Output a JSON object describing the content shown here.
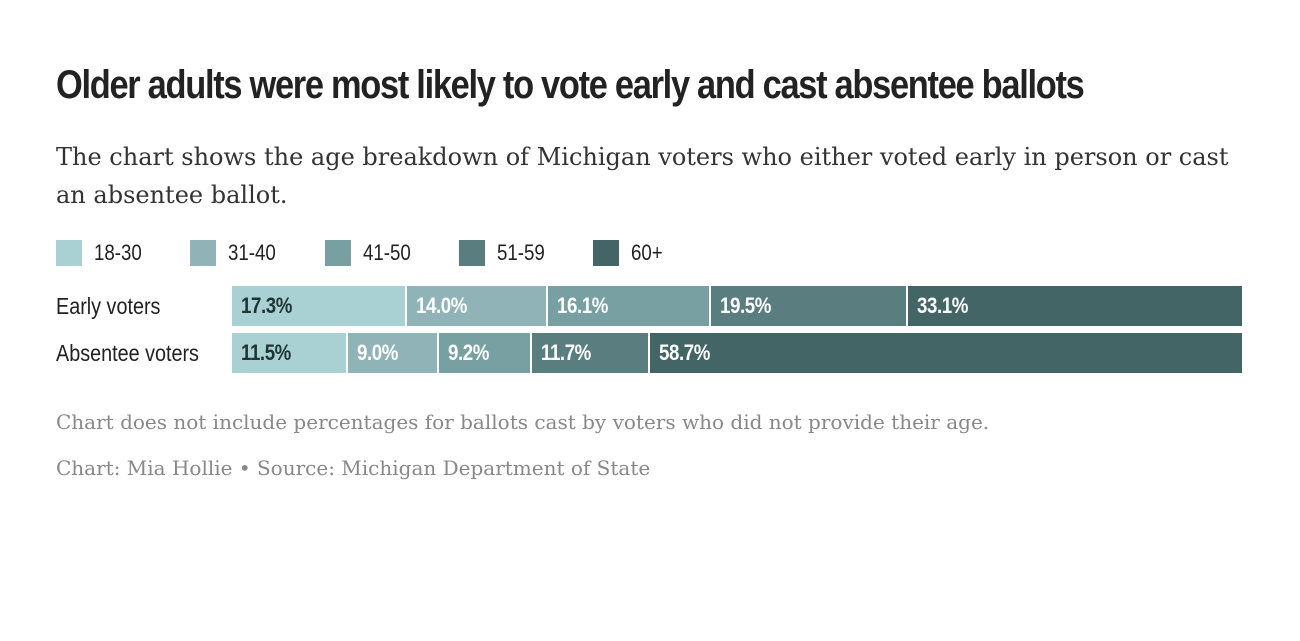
{
  "title": "Older adults were most likely to vote early and cast absentee ballots",
  "subtitle": "The chart shows the age breakdown of Michigan voters who either voted early in person or cast an absentee ballot.",
  "note": "Chart does not include percentages for ballots cast by voters who did not provide their age.",
  "credit": "Chart: Mia Hollie • Source: Michigan Department of State",
  "colors": {
    "18-30": "#a9d1d3",
    "31-40": "#8fb3b6",
    "41-50": "#78a0a2",
    "51-59": "#5a7e80",
    "60+": "#436565"
  },
  "chart_data": {
    "type": "bar",
    "stacked": true,
    "orientation": "horizontal",
    "categories": [
      "Early voters",
      "Absentee voters"
    ],
    "series": [
      {
        "name": "18-30",
        "values": [
          17.3,
          11.5
        ],
        "labels": [
          "17.3%",
          "11.5%"
        ]
      },
      {
        "name": "31-40",
        "values": [
          14.0,
          9.0
        ],
        "labels": [
          "14.0%",
          "9.0%"
        ]
      },
      {
        "name": "41-50",
        "values": [
          16.1,
          9.2
        ],
        "labels": [
          "16.1%",
          "9.2%"
        ]
      },
      {
        "name": "51-59",
        "values": [
          19.5,
          11.7
        ],
        "labels": [
          "19.5%",
          "11.7%"
        ]
      },
      {
        "name": "60+",
        "values": [
          33.1,
          58.7
        ],
        "labels": [
          "33.1%",
          "58.7%"
        ]
      }
    ],
    "legend_position": "top-left",
    "grid": false
  }
}
